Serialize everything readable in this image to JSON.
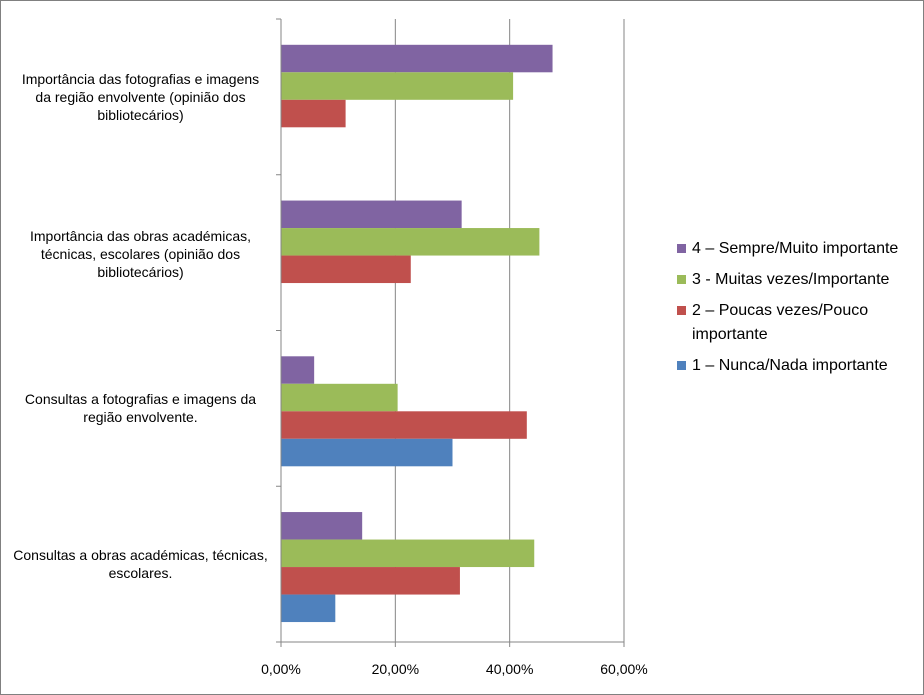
{
  "chart_data": {
    "type": "bar",
    "orientation": "horizontal",
    "title": "",
    "xlabel": "",
    "ylabel": "",
    "categories": [
      "Importância das fotografias e imagens da região envolvente (opinião dos bibliotecários)",
      "Importância das obras académicas, técnicas, escolares (opinião dos bibliotecários)",
      "Consultas a fotografias e imagens da região envolvente.",
      "Consultas a obras académicas, técnicas, escolares."
    ],
    "series": [
      {
        "name": "1 – Nunca/Nada importante",
        "color": "#4F81BD",
        "values": [
          0,
          0,
          30.0,
          9.5
        ]
      },
      {
        "name": "2 – Poucas vezes/Pouco importante",
        "color": "#C0504D",
        "values": [
          11.3,
          22.7,
          43.0,
          31.3
        ]
      },
      {
        "name": "3 - Muitas vezes/Importante",
        "color": "#9BBB59",
        "values": [
          40.6,
          45.2,
          20.4,
          44.3
        ]
      },
      {
        "name": "4 – Sempre/Muito importante",
        "color": "#8064A2",
        "values": [
          47.5,
          31.6,
          5.8,
          14.2
        ]
      }
    ],
    "xlim": [
      0,
      60
    ],
    "xticks": [
      0,
      20,
      40,
      60
    ],
    "xtick_labels": [
      "0,00%",
      "20,00%",
      "40,00%",
      "60,00%"
    ],
    "grid": "vertical major gridlines",
    "legend_position": "right",
    "legend_order": [
      3,
      2,
      1,
      0
    ]
  }
}
